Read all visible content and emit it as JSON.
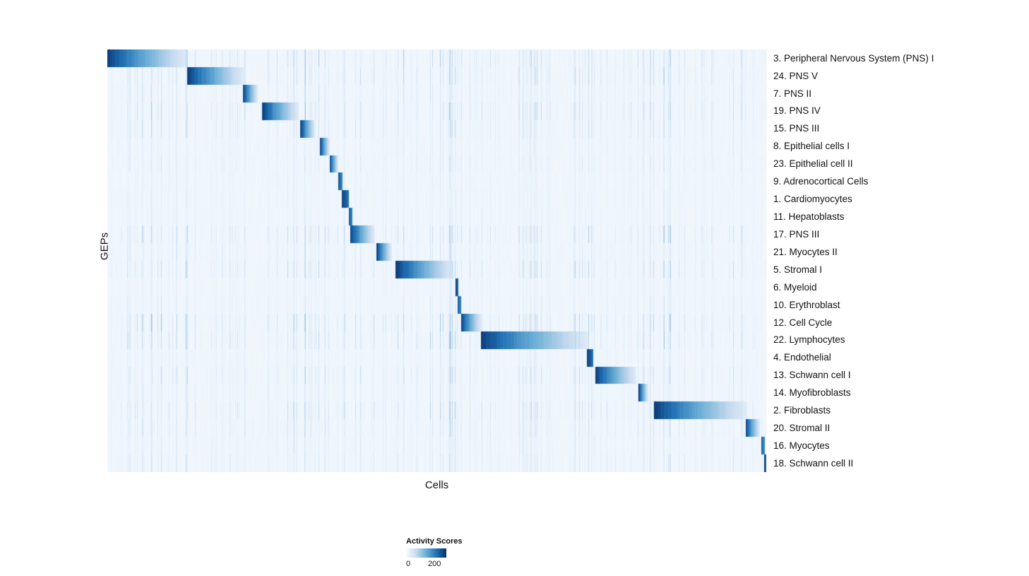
{
  "chart_data": {
    "type": "heatmap",
    "title": "",
    "xlabel": "Cells",
    "ylabel": "GEPs",
    "legend": {
      "title": "Activity Scores",
      "min_label": "0",
      "max_label": "200",
      "min": 0,
      "max": 200,
      "colormap": "Blues",
      "palette": [
        "#f7fbff",
        "#c6dbef",
        "#6baed6",
        "#2171b5",
        "#08306b"
      ]
    },
    "description": "Heatmap of GEP activity scores per cell; cells are ordered so each GEP's high-activity cells form a dark diagonal block fading left-to-right, over a near-white background with sparse light-blue vertical noise streaks.",
    "rows": [
      {
        "label": "3. Peripheral Nervous System (PNS) I",
        "start": 0.0,
        "end": 0.121,
        "peak": 1.0,
        "noise": 0.5
      },
      {
        "label": "24. PNS V",
        "start": 0.121,
        "end": 0.207,
        "peak": 1.0,
        "noise": 0.45
      },
      {
        "label": "7. PNS II",
        "start": 0.205,
        "end": 0.228,
        "peak": 1.0,
        "noise": 0.32
      },
      {
        "label": "19. PNS IV",
        "start": 0.234,
        "end": 0.29,
        "peak": 1.0,
        "noise": 0.5
      },
      {
        "label": "15. PNS III",
        "start": 0.292,
        "end": 0.315,
        "peak": 1.0,
        "noise": 0.38
      },
      {
        "label": "8. Epithelial cells I",
        "start": 0.322,
        "end": 0.337,
        "peak": 1.0,
        "noise": 0.2
      },
      {
        "label": "23. Epithelial cell II",
        "start": 0.337,
        "end": 0.35,
        "peak": 1.0,
        "noise": 0.25
      },
      {
        "label": "9. Adrenocortical Cells",
        "start": 0.35,
        "end": 0.356,
        "peak": 0.9,
        "noise": 0.15
      },
      {
        "label": "1. Cardiomyocytes",
        "start": 0.355,
        "end": 0.366,
        "peak": 1.0,
        "noise": 0.15
      },
      {
        "label": "11. Hepatoblasts",
        "start": 0.366,
        "end": 0.371,
        "peak": 0.9,
        "noise": 0.15
      },
      {
        "label": "17. PNS III",
        "start": 0.368,
        "end": 0.405,
        "peak": 1.0,
        "noise": 0.5
      },
      {
        "label": "21. Myocytes II",
        "start": 0.408,
        "end": 0.431,
        "peak": 1.0,
        "noise": 0.3
      },
      {
        "label": "5. Stromal I",
        "start": 0.437,
        "end": 0.525,
        "peak": 1.0,
        "noise": 0.45
      },
      {
        "label": "6. Myeloid",
        "start": 0.528,
        "end": 0.532,
        "peak": 1.0,
        "noise": 0.15
      },
      {
        "label": "10. Erythroblast",
        "start": 0.531,
        "end": 0.536,
        "peak": 0.9,
        "noise": 0.2
      },
      {
        "label": "12. Cell Cycle",
        "start": 0.536,
        "end": 0.567,
        "peak": 1.0,
        "noise": 0.55
      },
      {
        "label": "22. Lymphocytes",
        "start": 0.566,
        "end": 0.73,
        "peak": 1.0,
        "noise": 0.5
      },
      {
        "label": "4. Endothelial",
        "start": 0.727,
        "end": 0.737,
        "peak": 1.0,
        "noise": 0.2
      },
      {
        "label": "13. Schwann cell I",
        "start": 0.74,
        "end": 0.802,
        "peak": 1.0,
        "noise": 0.4
      },
      {
        "label": "14. Myofibroblasts",
        "start": 0.806,
        "end": 0.82,
        "peak": 1.0,
        "noise": 0.25
      },
      {
        "label": "2. Fibroblasts",
        "start": 0.829,
        "end": 0.97,
        "peak": 1.0,
        "noise": 0.5
      },
      {
        "label": "20. Stromal II",
        "start": 0.968,
        "end": 0.99,
        "peak": 1.0,
        "noise": 0.35
      },
      {
        "label": "16. Myocytes",
        "start": 0.992,
        "end": 0.997,
        "peak": 0.85,
        "noise": 0.25
      },
      {
        "label": "18. Schwann cell II",
        "start": 0.996,
        "end": 1.0,
        "peak": 1.0,
        "noise": 0.3
      }
    ]
  }
}
